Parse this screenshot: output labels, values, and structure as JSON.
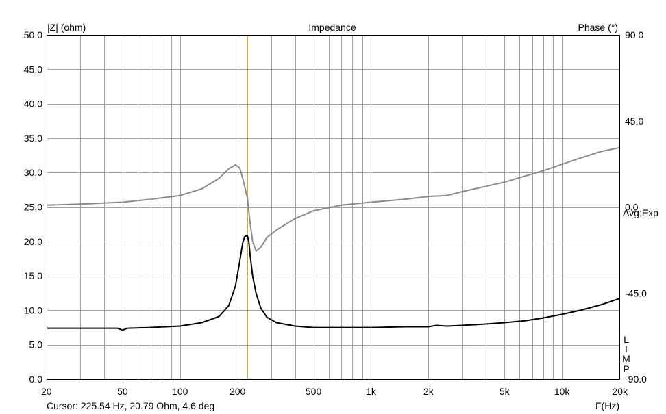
{
  "chart_data": {
    "type": "line",
    "title": "Impedance",
    "ylabel_left": "|Z| (ohm)",
    "ylabel_right": "Phase (°)",
    "xlabel": "F(Hz)",
    "x_scale": "log",
    "xlim": [
      20,
      20000
    ],
    "ylim_left": [
      0,
      50
    ],
    "ylim_right": [
      -90,
      90
    ],
    "x_ticks": [
      {
        "value": 20,
        "label": "20"
      },
      {
        "value": 50,
        "label": "50"
      },
      {
        "value": 100,
        "label": "100"
      },
      {
        "value": 200,
        "label": "200"
      },
      {
        "value": 500,
        "label": "500"
      },
      {
        "value": 1000,
        "label": "1k"
      },
      {
        "value": 2000,
        "label": "2k"
      },
      {
        "value": 5000,
        "label": "5k"
      },
      {
        "value": 10000,
        "label": "10k"
      },
      {
        "value": 20000,
        "label": "20k"
      }
    ],
    "y_ticks_left": [
      "50.0",
      "45.0",
      "40.0",
      "35.0",
      "30.0",
      "25.0",
      "20.0",
      "15.0",
      "10.0",
      "5.0",
      "0.0"
    ],
    "y_ticks_right": [
      {
        "value": 90,
        "label": "90.0"
      },
      {
        "value": 45,
        "label": "45.0"
      },
      {
        "value": 0,
        "label": "0.0"
      },
      {
        "value": -45,
        "label": "-45.0"
      },
      {
        "value": -90,
        "label": "-90.0"
      }
    ],
    "grid": true,
    "cursor_freq_hz": 225.54,
    "averaging_label": "Avg:Exp",
    "limp_label": [
      "L",
      "I",
      "M",
      "P"
    ],
    "series": [
      {
        "axis": "left",
        "color": "#000000",
        "x": [
          20,
          30,
          40,
          47,
          50,
          53,
          70,
          100,
          130,
          160,
          180,
          195,
          205,
          213,
          218,
          222,
          225.5,
          229,
          233,
          240,
          250,
          265,
          285,
          320,
          400,
          500,
          700,
          1000,
          1500,
          2000,
          2200,
          2500,
          3000,
          4000,
          5000,
          6500,
          8000,
          10000,
          12500,
          16000,
          20000
        ],
        "values": [
          7.4,
          7.4,
          7.4,
          7.4,
          7.1,
          7.4,
          7.5,
          7.7,
          8.2,
          9.1,
          10.7,
          13.5,
          17.0,
          19.8,
          20.7,
          20.8,
          20.79,
          20.0,
          18.0,
          15.0,
          12.5,
          10.3,
          9.0,
          8.2,
          7.7,
          7.5,
          7.5,
          7.5,
          7.6,
          7.6,
          7.8,
          7.7,
          7.8,
          8.0,
          8.2,
          8.5,
          8.9,
          9.4,
          10.0,
          10.8,
          11.7
        ]
      },
      {
        "axis": "right",
        "color": "#8a8a8a",
        "x": [
          20,
          30,
          50,
          70,
          100,
          130,
          160,
          180,
          195,
          205,
          213,
          220,
          225.5,
          232,
          240,
          250,
          265,
          285,
          320,
          400,
          500,
          700,
          1000,
          1500,
          2000,
          2500,
          3000,
          5000,
          8000,
          12000,
          16000,
          20000
        ],
        "values": [
          1.0,
          1.5,
          2.5,
          4.0,
          6.0,
          9.5,
          15.0,
          20.0,
          22.0,
          20.5,
          15.0,
          9.0,
          4.6,
          -7.0,
          -18.0,
          -23.0,
          -21.0,
          -16.0,
          -12.0,
          -6.0,
          -2.0,
          1.0,
          2.5,
          4.0,
          5.5,
          6.0,
          8.0,
          13.0,
          19.0,
          25.0,
          29.0,
          31.0
        ]
      }
    ]
  },
  "status": {
    "cursor_text": "Cursor: 225.54 Hz, 20.79 Ohm, 4.6 deg"
  }
}
